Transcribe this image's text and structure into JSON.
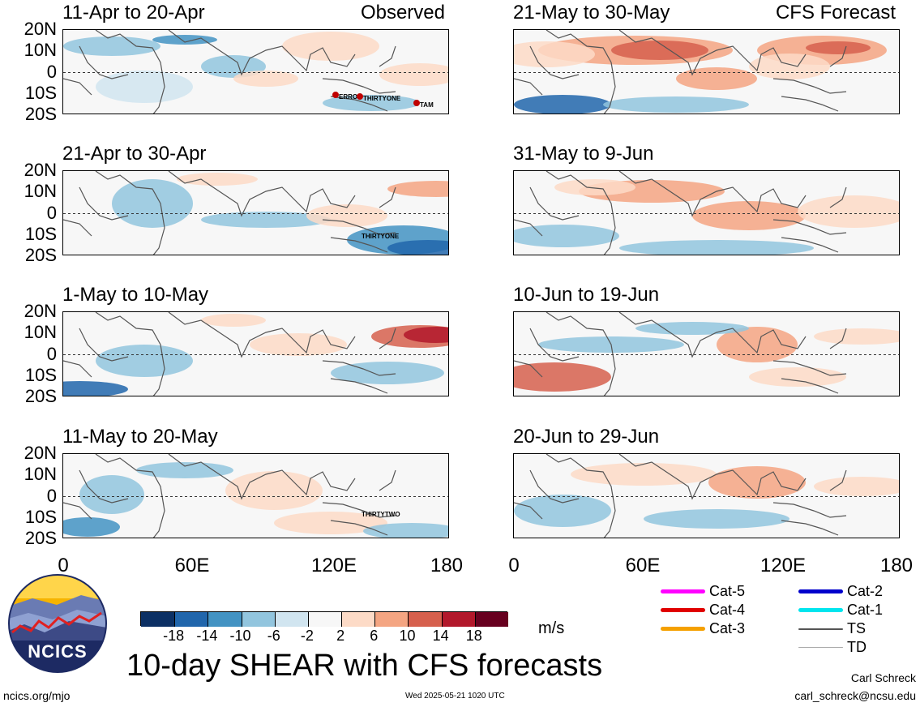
{
  "panels_left": [
    {
      "title": "11-Apr to 20-Apr",
      "tag": "Observed",
      "storms": [
        "ERROL",
        "THIRTYONE",
        "TAM"
      ]
    },
    {
      "title": "21-Apr to 30-Apr",
      "tag": "",
      "storms": [
        "THIRTYONE"
      ]
    },
    {
      "title": "1-May to 10-May",
      "tag": "",
      "storms": []
    },
    {
      "title": "11-May to 20-May",
      "tag": "",
      "storms": [
        "THIRTYTWO"
      ]
    }
  ],
  "panels_right": [
    {
      "title": "21-May to 30-May",
      "tag": "CFS Forecast"
    },
    {
      "title": "31-May to 9-Jun",
      "tag": ""
    },
    {
      "title": "10-Jun to 19-Jun",
      "tag": ""
    },
    {
      "title": "20-Jun to 29-Jun",
      "tag": ""
    }
  ],
  "lat_labels": [
    "20N",
    "10N",
    "0",
    "10S",
    "20S"
  ],
  "lon_labels": [
    "0",
    "60E",
    "120E",
    "180"
  ],
  "colorbar": {
    "ticks": [
      "-18",
      "-14",
      "-10",
      "-6",
      "-2",
      "2",
      "6",
      "10",
      "14",
      "18"
    ],
    "colors": [
      "#0c3064",
      "#2166ac",
      "#4393c3",
      "#92c5de",
      "#d1e5f0",
      "#f7f7f7",
      "#fddbc7",
      "#f4a582",
      "#d6604d",
      "#b2182b",
      "#67001f"
    ],
    "unit": "m/s"
  },
  "legend": {
    "left": [
      {
        "label": "Cat-5",
        "color": "#ff00ff"
      },
      {
        "label": "Cat-4",
        "color": "#e00000"
      },
      {
        "label": "Cat-3",
        "color": "#f5a000"
      }
    ],
    "right": [
      {
        "label": "Cat-2",
        "color": "#0000cc"
      },
      {
        "label": "Cat-1",
        "color": "#00e5ee"
      },
      {
        "label": "TS",
        "color": "#555555"
      },
      {
        "label": "TD",
        "color": "#aaaaaa"
      }
    ]
  },
  "logo_text": "NCICS",
  "main_title": "10-day SHEAR with CFS forecasts",
  "url": "ncics.org/mjo",
  "timestamp": "Wed 2025-05-21 1020 UTC",
  "author": "Carl Schreck",
  "email": "carl_schreck@ncsu.edu"
}
